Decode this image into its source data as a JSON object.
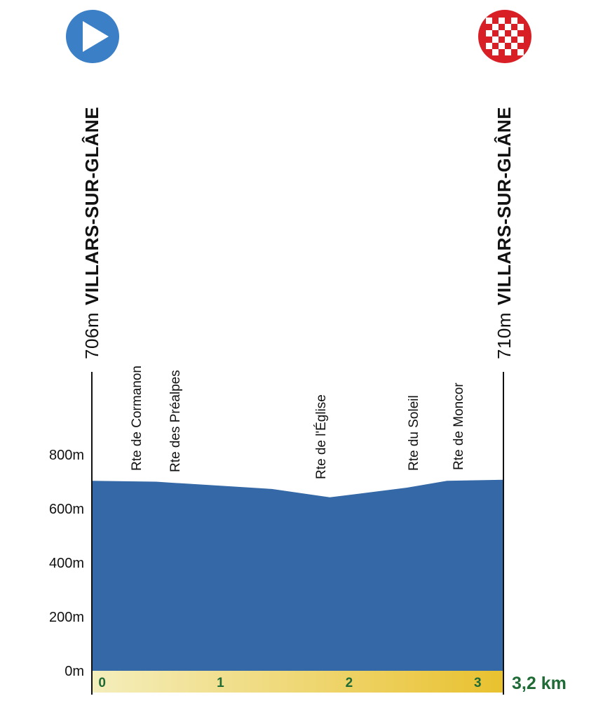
{
  "chart_data": {
    "type": "area",
    "title": "",
    "xlabel": "",
    "ylabel": "",
    "unit_x": "km",
    "x_total_label": "3,2 km",
    "xlim": [
      0,
      3.2
    ],
    "ylim": [
      0,
      800
    ],
    "yticks": [
      {
        "value": 0,
        "label": "0m"
      },
      {
        "value": 200,
        "label": "200m"
      },
      {
        "value": 400,
        "label": "400m"
      },
      {
        "value": 600,
        "label": "600m"
      },
      {
        "value": 800,
        "label": "800m"
      }
    ],
    "xticks": [
      {
        "value": 0.08,
        "label": "0"
      },
      {
        "value": 1,
        "label": "1"
      },
      {
        "value": 2,
        "label": "2"
      },
      {
        "value": 3,
        "label": "3"
      }
    ],
    "profile": {
      "x": [
        0,
        0.5,
        0.6,
        1.0,
        1.4,
        1.85,
        2.45,
        2.76,
        3.2
      ],
      "y": [
        703,
        700,
        697,
        685,
        673,
        642,
        678,
        703,
        707
      ]
    },
    "start": {
      "name": "VILLARS-SUR-GLÂNE",
      "altitude": "706m"
    },
    "finish": {
      "name": "VILLARS-SUR-GLÂNE",
      "altitude": "710m"
    },
    "streets": [
      {
        "name": "Rte de Cormanon",
        "x": 0.35
      },
      {
        "name": "Rte des Préalpes",
        "x": 0.65
      },
      {
        "name": "Rte de l'Église",
        "x": 1.78
      },
      {
        "name": "Rte du Soleil",
        "x": 2.5
      },
      {
        "name": "Rte de Moncor",
        "x": 2.85
      }
    ],
    "colors": {
      "profile_fill": "#3568a6",
      "start_icon": "#3b7fc6",
      "finish_icon": "#d81f26",
      "distance_text": "#1f6b35",
      "bar_start": "#f4eebc",
      "bar_end": "#e9c12f"
    },
    "icons": {
      "start": "play-icon",
      "finish": "checkered-flag-icon"
    }
  }
}
